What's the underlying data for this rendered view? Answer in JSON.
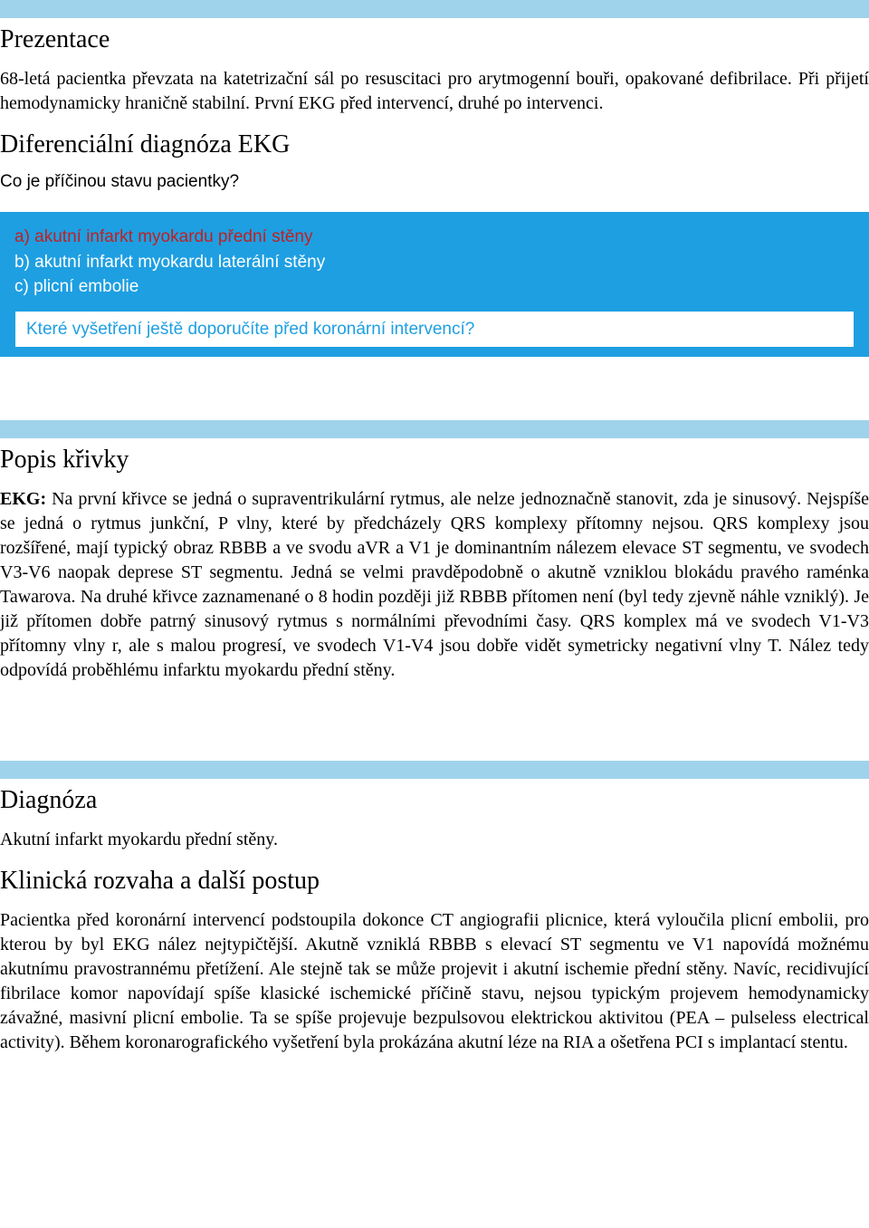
{
  "colors": {
    "hr_bar": "#9fd3eb",
    "answer_bg": "#1e9fe2",
    "answer_text": "#ffffff",
    "answer_a_color": "#c02020",
    "followup_text": "#1e9fe2",
    "body_text": "#000000",
    "page_bg": "#ffffff"
  },
  "typography": {
    "heading_font": "Times New Roman",
    "body_font": "Times New Roman",
    "box_font": "Arial",
    "heading_size_pt": 21,
    "body_size_pt": 15,
    "box_size_pt": 14
  },
  "sections": {
    "presentation": {
      "title": "Prezentace",
      "text": "68-letá pacientka převzata na katetrizační sál po resuscitaci pro arytmogenní bouři, opakované defibrilace. Při přijetí hemodynamicky hraničně stabilní. První EKG před intervencí, druhé po intervenci."
    },
    "differential": {
      "title": "Diferenciální diagnóza EKG",
      "question": "Co je příčinou stavu pacientky?",
      "options": {
        "a": "a) akutní infarkt myokardu přední stěny",
        "b": "b) akutní infarkt myokardu laterální stěny",
        "c": "c) plicní embolie"
      },
      "followup": "Které vyšetření ještě doporučíte před koronární intervencí?"
    },
    "curve": {
      "title": "Popis křivky",
      "label": "EKG:",
      "text": " Na první křivce se jedná o supraventrikulární rytmus, ale nelze jednoznačně stanovit, zda je sinusový. Nejspíše se jedná o rytmus junkční, P vlny, které by předcházely QRS komplexy přítomny nejsou. QRS komplexy jsou rozšířené, mají typický obraz RBBB a ve svodu aVR a V1 je dominantním nálezem elevace ST segmentu, ve svodech V3-V6 naopak deprese ST segmentu. Jedná se velmi pravděpodobně o akutně vzniklou blokádu pravého raménka Tawarova. Na druhé křivce zaznamenané o 8 hodin později již RBBB přítomen není (byl tedy zjevně náhle vzniklý). Je již přítomen dobře patrný sinusový rytmus s normálními převodními časy. QRS komplex má ve svodech V1-V3 přítomny vlny r, ale s malou progresí, ve svodech V1-V4 jsou dobře vidět symetricky negativní vlny T. Nález tedy odpovídá proběhlému infarktu myokardu přední stěny."
    },
    "diagnosis": {
      "title": "Diagnóza",
      "text": "Akutní infarkt myokardu přední stěny."
    },
    "clinical": {
      "title": "Klinická rozvaha a další postup",
      "text": "Pacientka před koronární intervencí podstoupila dokonce CT angiografii plicnice, která vyloučila plicní embolii, pro kterou by byl EKG nález nejtypičtější. Akutně vzniklá RBBB s elevací ST segmentu ve V1 napovídá možnému akutnímu pravostrannému přetížení. Ale stejně tak se může projevit i akutní ischemie přední stěny. Navíc, recidivující fibrilace komor napovídají spíše klasické ischemické příčině stavu, nejsou typickým projevem hemodynamicky závažné, masivní plicní embolie. Ta se spíše projevuje bezpulsovou elektrickou aktivitou (PEA – pulseless electrical activity). Během koronarografického vyšetření byla prokázána akutní léze na RIA a ošetřena PCI s implantací stentu."
    }
  }
}
